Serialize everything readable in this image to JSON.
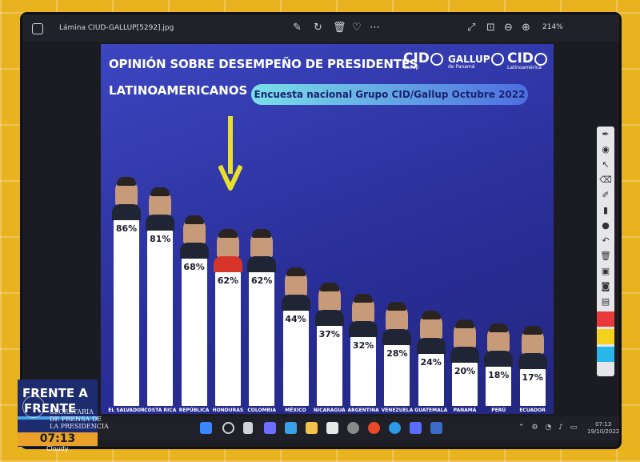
{
  "window": {
    "file_name": "Lámina CIUD-GALLUP[5292].jpg",
    "zoom": "214%"
  },
  "slide": {
    "title_line1": "OPINIÓN SOBRE DESEMPEÑO DE PRESIDENTES",
    "title_line2": "LATINOAMERICANOS",
    "subtitle": "Encuesta nacional Grupo CID/Gallup Octubre 2022",
    "logos": [
      {
        "name": "CID",
        "caption": "Gallup"
      },
      {
        "name": "GALLUP",
        "caption": "de Panamá"
      },
      {
        "name": "CID",
        "caption": "Latinoamérica"
      }
    ],
    "highlight_color": "#e8e02a"
  },
  "chart_data": {
    "type": "bar",
    "title": "OPINIÓN SOBRE DESEMPEÑO DE PRESIDENTES LATINOAMERICANOS",
    "categories": [
      "EL SALVADOR",
      "COSTA RICA",
      "REPÚBLICA",
      "HONDURAS",
      "COLOMBIA",
      "MÉXICO",
      "NICARAGUA",
      "ARGENTINA",
      "VENEZUELA",
      "GUATEMALA",
      "PANAMÁ",
      "PERÚ",
      "ECUADOR"
    ],
    "values": [
      86,
      81,
      68,
      62,
      62,
      44,
      37,
      32,
      28,
      24,
      20,
      18,
      17
    ],
    "labels": [
      "86%",
      "81%",
      "68%",
      "62%",
      "62%",
      "44%",
      "37%",
      "32%",
      "28%",
      "24%",
      "20%",
      "18%",
      "17%"
    ],
    "highlighted_category": "HONDURAS",
    "ylim": [
      0,
      100
    ]
  },
  "taskbar": {
    "time": "07:13",
    "date": "19/10/2022"
  },
  "overlay": {
    "show_line1": "FRENTE A",
    "show_line2": "FRENTE",
    "org_line1": "SECRETARÍA",
    "org_line2": "DE PRENSA DE",
    "org_line3": "LA PRESIDENCIA",
    "time": "07:13",
    "weather": "Cloudy"
  }
}
